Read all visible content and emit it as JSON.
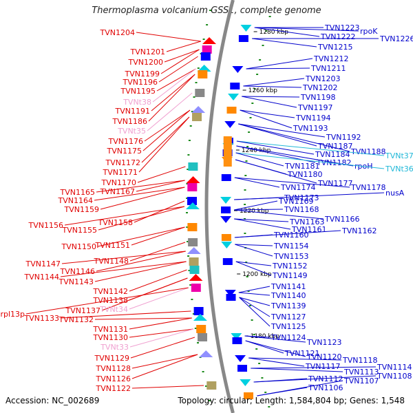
{
  "title": "Thermoplasma volcanium GSS1, complete genome",
  "footer": {
    "accession": "Accession: NC_002689",
    "topology": "Topology: circular; Length: 1,584,804 bp; Genes: 1,548"
  },
  "colors": {
    "left_label": "#e00000",
    "left_rna": "#f0a0d0",
    "right_label": "#0000cc",
    "right_rna": "#20b8d8",
    "backbone": "#888888",
    "tick": "#1a8a1a"
  },
  "kbp_marks": [
    "1280 kbp",
    "1260 kbp",
    "1240 kbp",
    "1220 kbp",
    "1200 kbp",
    "1180 kbp"
  ],
  "left_labels": [
    {
      "text": "TVN1204"
    },
    {
      "text": "TVN1201"
    },
    {
      "text": "TVN1200"
    },
    {
      "text": "TVN1199"
    },
    {
      "text": "TVN1196"
    },
    {
      "text": "TVN1195"
    },
    {
      "text": "TVNt38",
      "rna": true
    },
    {
      "text": "TVN1191"
    },
    {
      "text": "TVN1186"
    },
    {
      "text": "TVNt35",
      "rna": true
    },
    {
      "text": "TVN1176"
    },
    {
      "text": "TVN1175"
    },
    {
      "text": "TVN1172"
    },
    {
      "text": "TVN1171"
    },
    {
      "text": "TVN1170"
    },
    {
      "text": "TVN1167"
    },
    {
      "text": "TVN1165"
    },
    {
      "text": "TVN1164"
    },
    {
      "text": "TVN1159"
    },
    {
      "text": "TVN1158"
    },
    {
      "text": "TVN1156"
    },
    {
      "text": "TVN1155"
    },
    {
      "text": "TVN1151"
    },
    {
      "text": "TVN1150"
    },
    {
      "text": "TVN1148"
    },
    {
      "text": "TVN1147"
    },
    {
      "text": "TVN1146"
    },
    {
      "text": "TVN1144"
    },
    {
      "text": "TVN1143"
    },
    {
      "text": "TVN1142"
    },
    {
      "text": "TVN1138"
    },
    {
      "text": "TVN1137"
    },
    {
      "text": "TVNt34",
      "rna": true
    },
    {
      "text": "rpl13p"
    },
    {
      "text": "TVN1133"
    },
    {
      "text": "TVN1132"
    },
    {
      "text": "TVN1131"
    },
    {
      "text": "TVN1130"
    },
    {
      "text": "TVNt33",
      "rna": true
    },
    {
      "text": "TVN1129"
    },
    {
      "text": "TVN1128"
    },
    {
      "text": "TVN1126"
    },
    {
      "text": "TVN1122"
    }
  ],
  "right_labels": [
    {
      "text": "TVN1223"
    },
    {
      "text": "rpoK"
    },
    {
      "text": "TVN1222"
    },
    {
      "text": "TVN1226"
    },
    {
      "text": "TVN1215"
    },
    {
      "text": "TVN1212"
    },
    {
      "text": "TVN1211"
    },
    {
      "text": "TVN1203"
    },
    {
      "text": "TVN1202"
    },
    {
      "text": "TVN1198"
    },
    {
      "text": "TVN1197"
    },
    {
      "text": "TVN1194"
    },
    {
      "text": "TVN1193"
    },
    {
      "text": "TVN1192"
    },
    {
      "text": "TVN1187"
    },
    {
      "text": "TVN1188"
    },
    {
      "text": "TVNt37",
      "rna": true
    },
    {
      "text": "TVN1184"
    },
    {
      "text": "TVN1182"
    },
    {
      "text": "rpoH"
    },
    {
      "text": "TVNt36",
      "rna": true
    },
    {
      "text": "TVN1181"
    },
    {
      "text": "TVN1180"
    },
    {
      "text": "TVN1177"
    },
    {
      "text": "TVN1178"
    },
    {
      "text": "TVN1174"
    },
    {
      "text": "nusA"
    },
    {
      "text": "TVN1173"
    },
    {
      "text": "TVN1169"
    },
    {
      "text": "TVN1168"
    },
    {
      "text": "TVN1166"
    },
    {
      "text": "TVN1163"
    },
    {
      "text": "TVN1161"
    },
    {
      "text": "TVN1162"
    },
    {
      "text": "TVN1160"
    },
    {
      "text": "TVN1154"
    },
    {
      "text": "TVN1153"
    },
    {
      "text": "TVN1152"
    },
    {
      "text": "TVN1149"
    },
    {
      "text": "TVN1141"
    },
    {
      "text": "TVN1140"
    },
    {
      "text": "TVN1139"
    },
    {
      "text": "TVN1127"
    },
    {
      "text": "TVN1125"
    },
    {
      "text": "TVN1124"
    },
    {
      "text": "TVN1123"
    },
    {
      "text": "TVN1121"
    },
    {
      "text": "TVN1120"
    },
    {
      "text": "TVN1118"
    },
    {
      "text": "TVN1117"
    },
    {
      "text": "TVN1114"
    },
    {
      "text": "TVN1113"
    },
    {
      "text": "TVN1108"
    },
    {
      "text": "TVN1112"
    },
    {
      "text": "TVN1107"
    },
    {
      "text": "TVN1106"
    }
  ]
}
